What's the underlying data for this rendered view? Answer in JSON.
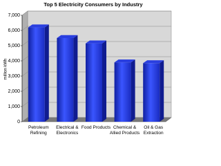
{
  "chart_data": {
    "type": "bar",
    "title": "Top 5 Electricity Consumers by Industry",
    "y_label": "million kWh",
    "categories": [
      "Petroleum Refining",
      "Electrical & Electronics",
      "Food Products",
      "Chemical & Allied Products",
      "Oil & Gas Extraction"
    ],
    "values": [
      6200,
      5500,
      5150,
      3900,
      3850
    ],
    "color": "#2a3fe0",
    "ylim": [
      0,
      7000
    ],
    "yticks": [
      0,
      {
        "value": 1000,
        "label": "1,000"
      },
      {
        "value": 2000,
        "label": "2,000"
      },
      {
        "value": 3000,
        "label": "3,000"
      },
      {
        "value": 4000,
        "label": "4,000"
      },
      {
        "value": 5000,
        "label": "5,000"
      },
      {
        "value": 6000,
        "label": "6,000"
      },
      {
        "value": 7000,
        "label": "7,000"
      }
    ],
    "grid": true
  }
}
